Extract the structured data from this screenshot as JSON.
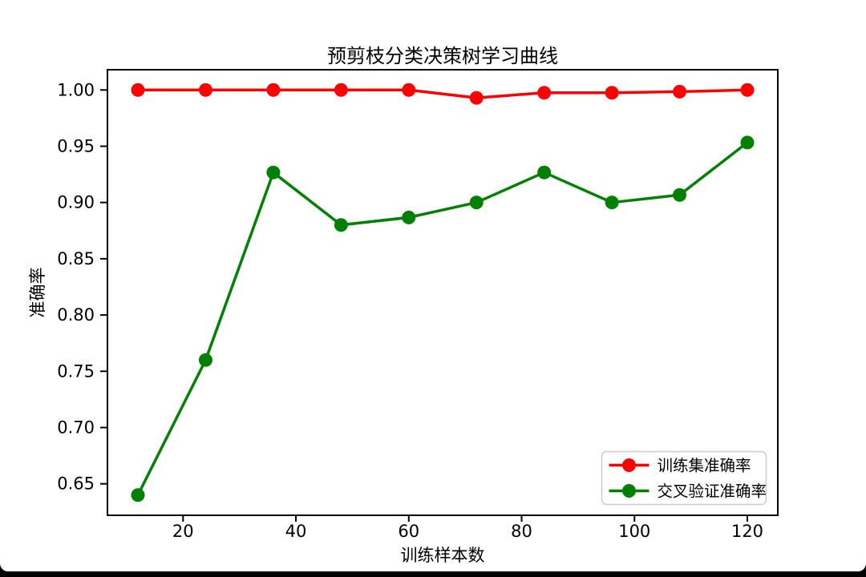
{
  "page": {
    "background_color": "#ffffff",
    "bottom_bar_color": "#000000"
  },
  "chart_data": {
    "type": "line",
    "title": "预剪枝分类决策树学习曲线",
    "xlabel": "训练样本数",
    "ylabel": "准确率",
    "x": [
      12,
      24,
      36,
      48,
      60,
      72,
      84,
      96,
      108,
      120
    ],
    "series": [
      {
        "name": "训练集准确率",
        "color": "#ff0000",
        "marker": "o",
        "values": [
          1.0,
          1.0,
          1.0,
          1.0,
          1.0,
          0.993,
          0.9975,
          0.9975,
          0.9985,
          1.0
        ]
      },
      {
        "name": "交叉验证准确率",
        "color": "#008000",
        "marker": "o",
        "values": [
          0.64,
          0.76,
          0.9267,
          0.88,
          0.8867,
          0.9,
          0.9267,
          0.9,
          0.9067,
          0.9533
        ]
      }
    ],
    "xticks": [
      20,
      40,
      60,
      80,
      100,
      120
    ],
    "yticks": [
      0.65,
      0.7,
      0.75,
      0.8,
      0.85,
      0.9,
      0.95,
      1.0
    ],
    "xlim": [
      6.6,
      125.4
    ],
    "ylim": [
      0.622,
      1.018
    ],
    "grid": false,
    "legend_position": "lower right",
    "legend_labels": [
      "训练集准确率",
      "交叉验证准确率"
    ]
  }
}
